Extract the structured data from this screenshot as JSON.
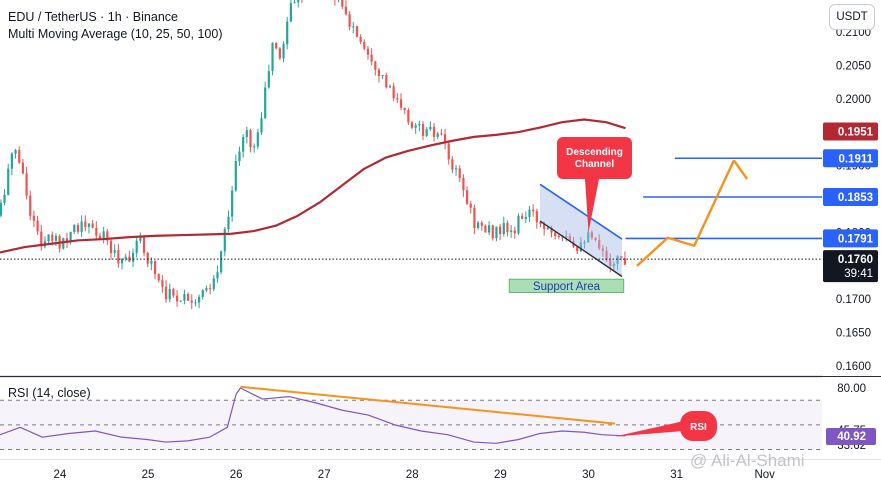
{
  "header": {
    "symbol_line": "EDU / TetherUS · 1h · Binance",
    "indicator_line": "Multi Moving Average (10, 25, 50, 100)"
  },
  "currency_button": "USDT",
  "watermark": "@ Ali-Al-Shami",
  "colors": {
    "up": "#26a69a",
    "down": "#ef5350",
    "ma": "#b22833",
    "arrow": "#f7931a",
    "level": "#2962ff",
    "rsi": "#7e57c2",
    "support_fill": "#8fd19e",
    "channel_fill": "#a7b8e8",
    "callout": "#f23645"
  },
  "chart_data": [
    {
      "type": "candlestick",
      "title": "EDU / TetherUS · 1h · Binance",
      "ylim": [
        0.158,
        0.218
      ],
      "y_ticks": [
        "0.1600",
        "0.1650",
        "0.1700",
        "0.1750",
        "0.1800",
        "0.1850",
        "0.1900",
        "0.1950",
        "0.2000",
        "0.2050",
        "0.2100"
      ],
      "x_ticks": [
        "24",
        "25",
        "26",
        "27",
        "28",
        "29",
        "30",
        "31",
        "Nov"
      ],
      "x_tick_days": [
        24,
        25,
        26,
        27,
        28,
        29,
        30,
        31,
        32
      ],
      "x_range": [
        23.32,
        33.32
      ],
      "ohlc_path": [
        [
          23.35,
          0.1825
        ],
        [
          23.45,
          0.189
        ],
        [
          23.55,
          0.193
        ],
        [
          23.65,
          0.1865
        ],
        [
          23.75,
          0.181
        ],
        [
          23.85,
          0.178
        ],
        [
          23.95,
          0.179
        ],
        [
          24.05,
          0.1785
        ],
        [
          24.2,
          0.181
        ],
        [
          24.35,
          0.1808
        ],
        [
          24.55,
          0.179
        ],
        [
          24.7,
          0.176
        ],
        [
          24.85,
          0.1768
        ],
        [
          24.95,
          0.1785
        ],
        [
          25.05,
          0.176
        ],
        [
          25.15,
          0.1735
        ],
        [
          25.25,
          0.171
        ],
        [
          25.35,
          0.1704
        ],
        [
          25.45,
          0.1705
        ],
        [
          25.6,
          0.1703
        ],
        [
          25.75,
          0.1712
        ],
        [
          25.85,
          0.175
        ],
        [
          25.95,
          0.183
        ],
        [
          26.05,
          0.191
        ],
        [
          26.15,
          0.195
        ],
        [
          26.25,
          0.1925
        ],
        [
          26.35,
          0.199
        ],
        [
          26.45,
          0.208
        ],
        [
          26.55,
          0.206
        ],
        [
          26.65,
          0.214
        ],
        [
          26.75,
          0.216
        ],
        [
          26.85,
          0.2165
        ],
        [
          27.0,
          0.217
        ],
        [
          27.15,
          0.216
        ],
        [
          27.3,
          0.212
        ],
        [
          27.45,
          0.209
        ],
        [
          27.6,
          0.206
        ],
        [
          27.75,
          0.202
        ],
        [
          27.9,
          0.1985
        ],
        [
          28.05,
          0.196
        ],
        [
          28.2,
          0.195
        ],
        [
          28.35,
          0.1945
        ],
        [
          28.5,
          0.1895
        ],
        [
          28.6,
          0.187
        ],
        [
          28.75,
          0.1815
        ],
        [
          28.9,
          0.18
        ],
        [
          29.05,
          0.1805
        ],
        [
          29.2,
          0.18
        ],
        [
          29.3,
          0.183
        ],
        [
          29.45,
          0.182
        ],
        [
          29.55,
          0.181
        ],
        [
          29.65,
          0.1805
        ],
        [
          29.8,
          0.18
        ],
        [
          29.9,
          0.178
        ],
        [
          30.0,
          0.1795
        ],
        [
          30.1,
          0.1785
        ],
        [
          30.2,
          0.1765
        ],
        [
          30.3,
          0.1758
        ],
        [
          30.42,
          0.176
        ]
      ],
      "ma_path": [
        [
          23.32,
          0.177
        ],
        [
          23.6,
          0.1778
        ],
        [
          23.9,
          0.1783
        ],
        [
          24.2,
          0.1788
        ],
        [
          24.5,
          0.179
        ],
        [
          24.8,
          0.1793
        ],
        [
          25.1,
          0.1795
        ],
        [
          25.4,
          0.1796
        ],
        [
          25.7,
          0.1797
        ],
        [
          25.95,
          0.1798
        ],
        [
          26.2,
          0.1802
        ],
        [
          26.45,
          0.181
        ],
        [
          26.7,
          0.1825
        ],
        [
          26.95,
          0.1845
        ],
        [
          27.2,
          0.187
        ],
        [
          27.45,
          0.1895
        ],
        [
          27.7,
          0.1912
        ],
        [
          27.95,
          0.1922
        ],
        [
          28.2,
          0.193
        ],
        [
          28.45,
          0.1937
        ],
        [
          28.7,
          0.1943
        ],
        [
          28.95,
          0.1946
        ],
        [
          29.2,
          0.195
        ],
        [
          29.45,
          0.1957
        ],
        [
          29.7,
          0.1965
        ],
        [
          29.95,
          0.1969
        ],
        [
          30.2,
          0.1965
        ],
        [
          30.42,
          0.1956
        ]
      ],
      "current_price": "0.1760",
      "countdown": "39:41",
      "price_labels": [
        {
          "value": 0.1951,
          "text": "0.1951",
          "color": "#b22833"
        },
        {
          "value": 0.1911,
          "text": "0.1911",
          "color": "#2962ff"
        },
        {
          "value": 0.1853,
          "text": "0.1853",
          "color": "#2962ff"
        },
        {
          "value": 0.1791,
          "text": "0.1791",
          "color": "#2962ff"
        }
      ],
      "levels": [
        {
          "value": 0.1911,
          "from": 30.98
        },
        {
          "value": 0.1853,
          "from": 30.62
        },
        {
          "value": 0.1791,
          "from": 30.42
        }
      ],
      "support_area": {
        "label": "Support Area",
        "from": 29.1,
        "to": 30.4,
        "low": 0.171,
        "high": 0.173
      },
      "descending_channel": {
        "label": "Descending Channel",
        "upper": [
          [
            29.45,
            0.1872
          ],
          [
            30.38,
            0.179
          ]
        ],
        "lower": [
          [
            29.45,
            0.1817
          ],
          [
            30.38,
            0.1734
          ]
        ],
        "callout_tip": [
          30.0,
          0.18
        ]
      },
      "projection_path": [
        [
          30.55,
          0.175
        ],
        [
          30.9,
          0.1792
        ],
        [
          31.2,
          0.178
        ],
        [
          31.65,
          0.1908
        ]
      ],
      "projection_arrowhead_tail": [
        31.8,
        0.188
      ]
    },
    {
      "type": "line",
      "title": "RSI (14, close)",
      "ylim": [
        28,
        82
      ],
      "y_ticks": [
        "33.62",
        "45.75",
        "80.00"
      ],
      "y_tick_values": [
        33.62,
        45.75,
        80.0
      ],
      "current": "40.92",
      "overbought": 70,
      "oversold": 30,
      "rsi_path": [
        [
          23.32,
          42
        ],
        [
          23.55,
          48
        ],
        [
          23.8,
          40
        ],
        [
          24.1,
          43
        ],
        [
          24.4,
          45
        ],
        [
          24.7,
          40
        ],
        [
          25.0,
          38
        ],
        [
          25.2,
          36
        ],
        [
          25.45,
          37
        ],
        [
          25.7,
          40
        ],
        [
          25.9,
          48
        ],
        [
          26.0,
          75
        ],
        [
          26.05,
          80
        ],
        [
          26.3,
          71
        ],
        [
          26.6,
          73
        ],
        [
          26.9,
          68
        ],
        [
          27.2,
          62
        ],
        [
          27.5,
          58
        ],
        [
          27.8,
          50
        ],
        [
          28.1,
          45
        ],
        [
          28.4,
          42
        ],
        [
          28.7,
          36
        ],
        [
          28.95,
          35
        ],
        [
          29.2,
          38
        ],
        [
          29.45,
          43
        ],
        [
          29.7,
          45
        ],
        [
          29.95,
          44
        ],
        [
          30.15,
          42
        ],
        [
          30.42,
          41
        ]
      ],
      "trendline": [
        [
          26.05,
          81
        ],
        [
          30.3,
          51
        ]
      ],
      "callout_label": "RSI",
      "callout_tip": [
        30.3,
        40.5
      ]
    }
  ]
}
